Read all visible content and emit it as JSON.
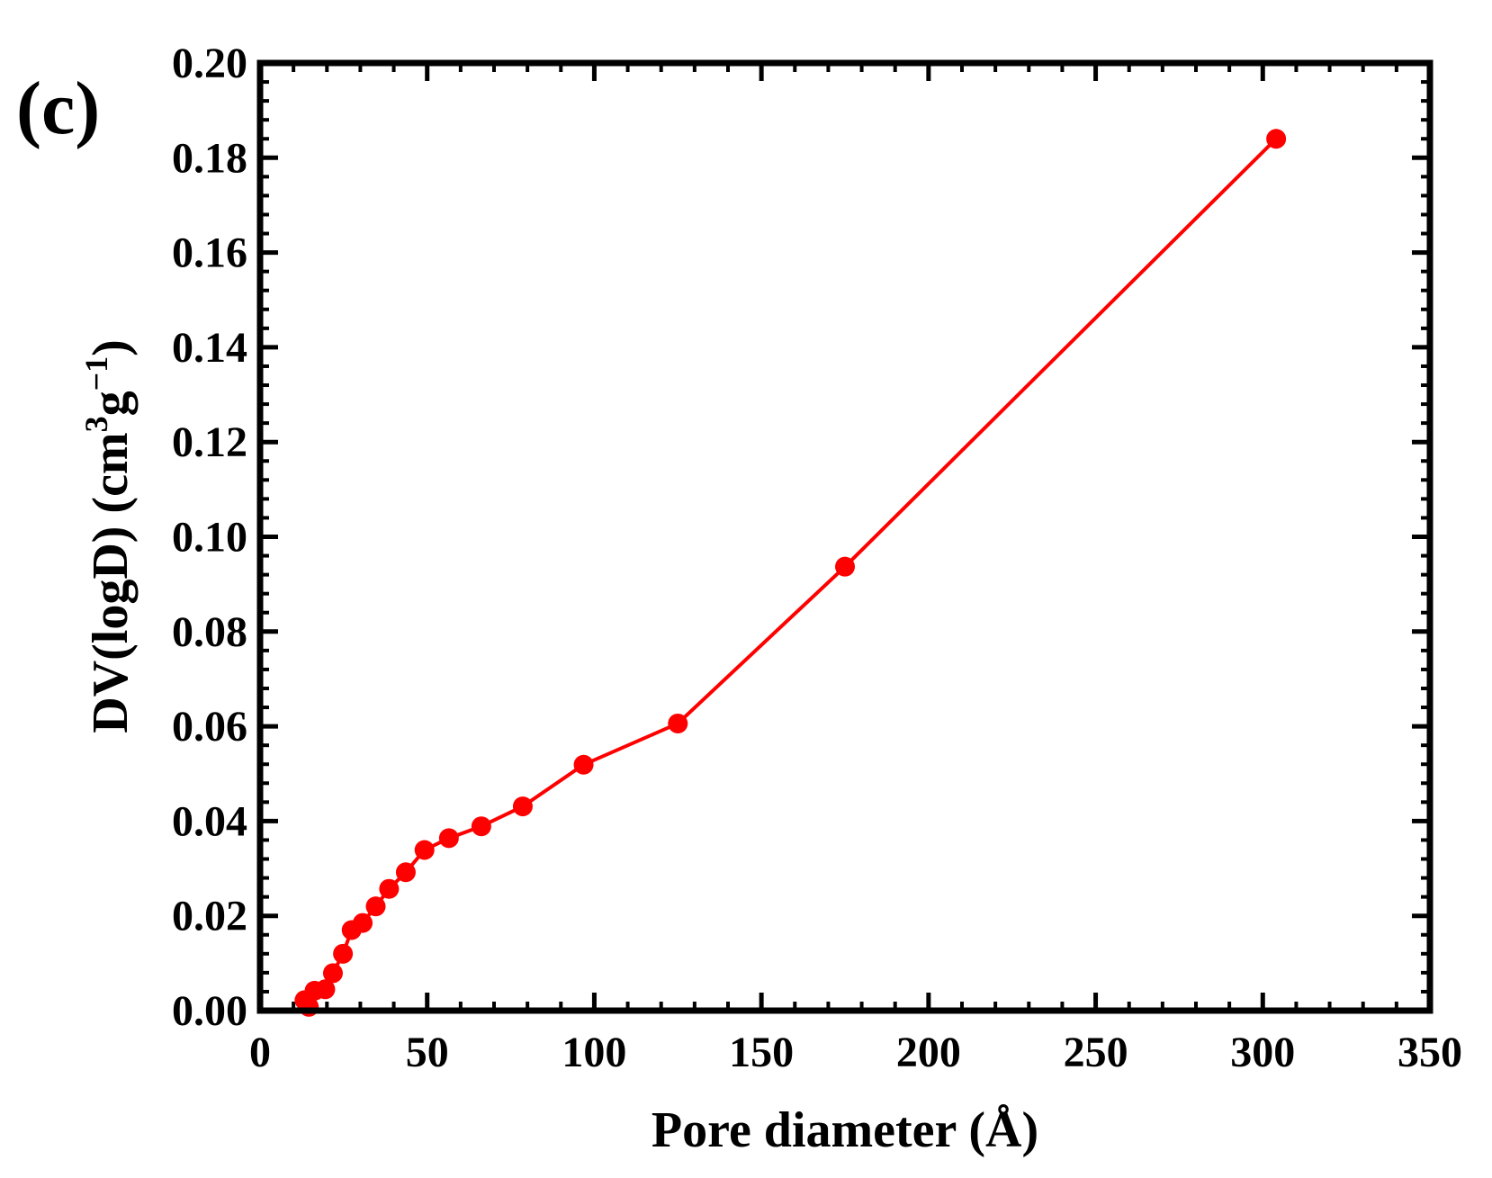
{
  "panel_label": "(c)",
  "colors": {
    "series": "#ff0000",
    "axes": "#000000",
    "background": "#ffffff"
  },
  "chart_data": {
    "type": "line",
    "title": "",
    "xlabel": "Pore diameter (Å)",
    "ylabel_main": "DV(logD) (cm",
    "ylabel_sup1": "3",
    "ylabel_mid": "g",
    "ylabel_sup2": "−1",
    "ylabel_end": ")",
    "xlim": [
      0,
      350
    ],
    "ylim": [
      0,
      0.2
    ],
    "xticks": [
      "0",
      "50",
      "100",
      "150",
      "200",
      "250",
      "300",
      "350"
    ],
    "yticks": [
      "0.00",
      "0.02",
      "0.04",
      "0.06",
      "0.08",
      "0.10",
      "0.12",
      "0.14",
      "0.16",
      "0.18",
      "0.20"
    ],
    "grid": false,
    "legend": "none",
    "series": [
      {
        "marker": "circle",
        "x": [
          13.3,
          14.6,
          16.3,
          19.5,
          21.8,
          24.8,
          27.4,
          30.7,
          34.6,
          38.6,
          43.6,
          49.2,
          56.5,
          66.2,
          78.6,
          96.8,
          125.0,
          175.0,
          304.0
        ],
        "y": [
          0.0022,
          0.0008,
          0.0042,
          0.0045,
          0.0079,
          0.012,
          0.017,
          0.0185,
          0.022,
          0.0257,
          0.0292,
          0.0339,
          0.0364,
          0.0389,
          0.0431,
          0.0519,
          0.0606,
          0.0937,
          0.184
        ]
      }
    ]
  }
}
